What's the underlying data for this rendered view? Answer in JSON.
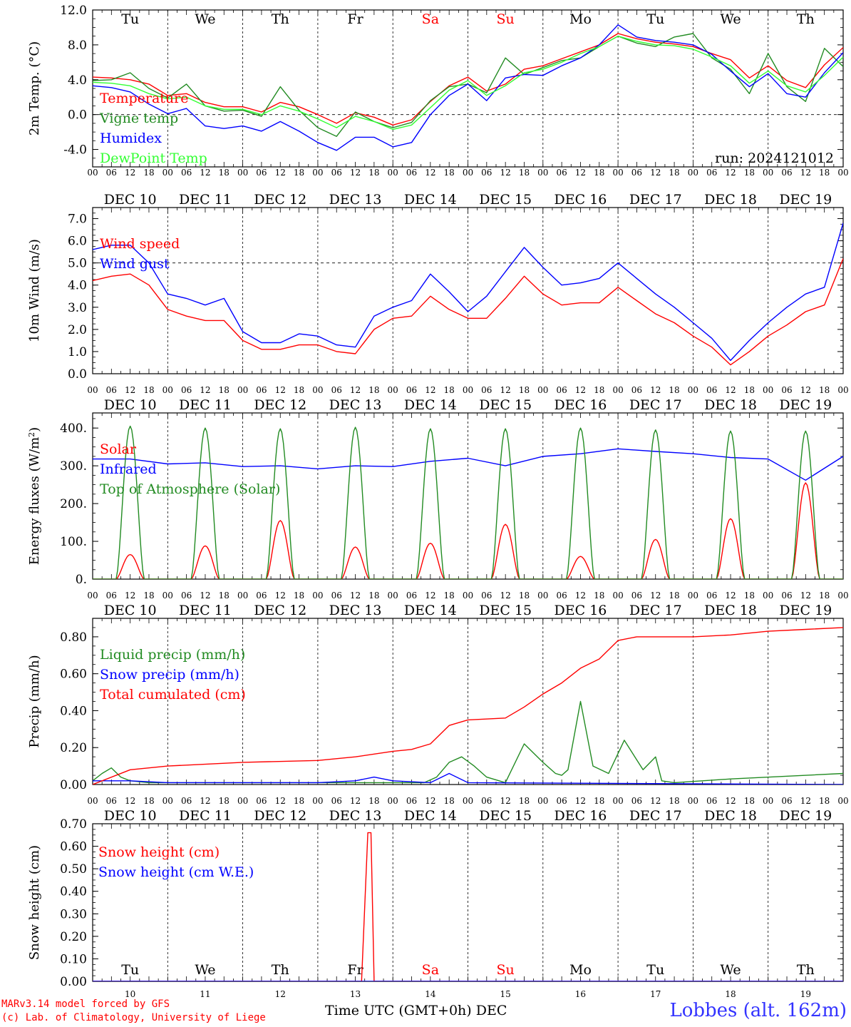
{
  "footer": {
    "model_line": "MARv3.14 model forced by GFS",
    "lab_line": "(c) Lab. of Climatology, University of Liege",
    "station": "Lobbes (alt. 162m)",
    "time_axis_title": "Time UTC (GMT+0h)",
    "month": "DEC"
  },
  "colors": {
    "red": "#ff0000",
    "green": "#228b22",
    "blue": "#0000ff",
    "lightgreen": "#33ff33",
    "weekend": "#ff0000",
    "weekday": "#000000"
  },
  "axis": {
    "hour_labels": [
      "00",
      "06",
      "12",
      "18"
    ],
    "date_labels": [
      "DEC 10",
      "DEC 11",
      "DEC 12",
      "DEC 13",
      "DEC 14",
      "DEC 15",
      "DEC 16",
      "DEC 17",
      "DEC 18",
      "DEC 19"
    ],
    "day_names": [
      "Tu",
      "We",
      "Th",
      "Fr",
      "Sa",
      "Su",
      "Mo",
      "Tu",
      "We",
      "Th"
    ],
    "weekend_flags": [
      false,
      false,
      false,
      false,
      true,
      true,
      false,
      false,
      false,
      false
    ],
    "day_numbers": [
      "10",
      "11",
      "12",
      "13",
      "14",
      "15",
      "16",
      "17",
      "18",
      "19"
    ],
    "total_hours": 240
  },
  "chart_data": [
    {
      "type": "line",
      "ylabel": "2m Temp. (°C)",
      "ylim": [
        -6,
        12
      ],
      "yticks": [
        -4,
        0,
        4,
        8,
        12
      ],
      "ytick_labels": [
        "-4.0",
        "0.0",
        "4.0",
        "8.0",
        "12.0"
      ],
      "ref_line": 0,
      "run_label": "run: 2024121012",
      "x_hours": [
        0,
        6,
        12,
        18,
        24,
        30,
        36,
        42,
        48,
        54,
        60,
        66,
        72,
        78,
        84,
        90,
        96,
        102,
        108,
        114,
        120,
        126,
        132,
        138,
        144,
        150,
        156,
        162,
        168,
        174,
        180,
        186,
        192,
        198,
        204,
        210,
        216,
        222,
        228,
        234,
        240
      ],
      "series": [
        {
          "name": "Temperature",
          "color": "red",
          "values": [
            4.3,
            4.2,
            4.0,
            3.5,
            2.2,
            2.4,
            1.4,
            0.9,
            0.9,
            0.3,
            1.4,
            0.9,
            0.0,
            -1.0,
            0.2,
            -0.3,
            -1.2,
            -0.6,
            1.5,
            3.3,
            4.3,
            2.7,
            3.5,
            5.2,
            5.6,
            6.4,
            7.2,
            8.0,
            9.3,
            8.7,
            8.3,
            8.1,
            7.8,
            7.0,
            6.3,
            4.2,
            5.6,
            3.9,
            3.1,
            5.7,
            7.7
          ]
        },
        {
          "name": "Vigne temp",
          "color": "green",
          "values": [
            3.9,
            4.0,
            4.8,
            3.0,
            1.9,
            3.5,
            1.0,
            0.4,
            0.5,
            -0.2,
            3.2,
            0.5,
            -1.5,
            -2.5,
            0.3,
            -0.8,
            -1.5,
            -0.9,
            1.6,
            3.2,
            3.5,
            2.5,
            6.5,
            4.6,
            5.4,
            6.2,
            6.5,
            7.8,
            9.0,
            8.2,
            7.8,
            8.9,
            9.3,
            6.5,
            5.2,
            2.4,
            7.0,
            3.2,
            1.5,
            7.6,
            5.5
          ]
        },
        {
          "name": "Humidex",
          "color": "blue",
          "values": [
            3.3,
            3.1,
            2.6,
            1.2,
            0.1,
            0.7,
            -1.3,
            -1.6,
            -1.3,
            -1.9,
            -0.8,
            -1.9,
            -3.2,
            -4.1,
            -2.6,
            -2.6,
            -3.7,
            -3.2,
            0.0,
            2.2,
            3.5,
            1.6,
            4.2,
            4.6,
            4.5,
            5.6,
            6.5,
            8.0,
            10.3,
            8.9,
            8.5,
            8.3,
            8.0,
            6.9,
            5.0,
            3.2,
            4.7,
            2.4,
            2.0,
            4.8,
            7.1
          ]
        },
        {
          "name": "DewPoint Temp",
          "color": "lightgreen",
          "values": [
            3.7,
            3.6,
            3.3,
            2.4,
            1.8,
            2.0,
            1.0,
            0.6,
            0.6,
            0.0,
            1.0,
            0.4,
            -0.5,
            -1.5,
            -0.2,
            -0.8,
            -1.7,
            -1.2,
            0.8,
            2.8,
            3.9,
            2.2,
            3.3,
            4.8,
            5.2,
            6.0,
            7.0,
            7.8,
            9.0,
            8.4,
            8.0,
            7.9,
            7.5,
            6.6,
            5.6,
            3.6,
            5.0,
            3.3,
            2.6,
            4.5,
            6.6
          ]
        }
      ]
    },
    {
      "type": "line",
      "ylabel": "10m Wind (m/s)",
      "ylim": [
        0,
        7.5
      ],
      "yticks": [
        0,
        1,
        2,
        3,
        4,
        5,
        6,
        7
      ],
      "ytick_labels": [
        "0.0",
        "1.0",
        "2.0",
        "3.0",
        "4.0",
        "5.0",
        "6.0",
        "7.0"
      ],
      "ref_line": 5,
      "x_hours": [
        0,
        6,
        12,
        18,
        24,
        30,
        36,
        42,
        48,
        54,
        60,
        66,
        72,
        78,
        84,
        90,
        96,
        102,
        108,
        114,
        120,
        126,
        132,
        138,
        144,
        150,
        156,
        162,
        168,
        174,
        180,
        186,
        192,
        198,
        204,
        210,
        216,
        222,
        228,
        234,
        240
      ],
      "series": [
        {
          "name": "Wind speed",
          "color": "red",
          "values": [
            4.2,
            4.4,
            4.5,
            4.0,
            2.9,
            2.6,
            2.4,
            2.4,
            1.5,
            1.1,
            1.1,
            1.3,
            1.3,
            1.0,
            0.9,
            2.0,
            2.5,
            2.6,
            3.5,
            2.9,
            2.5,
            2.5,
            3.4,
            4.4,
            3.6,
            3.1,
            3.2,
            3.2,
            3.9,
            3.3,
            2.7,
            2.3,
            1.7,
            1.2,
            0.4,
            1.0,
            1.7,
            2.2,
            2.8,
            3.1,
            5.2
          ]
        },
        {
          "name": "Wind gust",
          "color": "blue",
          "values": [
            5.6,
            5.8,
            5.8,
            5.0,
            3.6,
            3.4,
            3.1,
            3.4,
            1.9,
            1.4,
            1.4,
            1.8,
            1.7,
            1.3,
            1.2,
            2.6,
            3.0,
            3.3,
            4.5,
            3.7,
            2.8,
            3.5,
            4.6,
            5.7,
            4.8,
            4.0,
            4.1,
            4.3,
            5.0,
            4.3,
            3.6,
            3.0,
            2.3,
            1.6,
            0.6,
            1.5,
            2.3,
            3.0,
            3.6,
            3.9,
            6.8
          ]
        }
      ]
    },
    {
      "type": "line",
      "ylabel": "Energy fluxes (W/m²)",
      "ylim": [
        0,
        440
      ],
      "yticks": [
        0,
        100,
        200,
        300,
        400
      ],
      "ytick_labels": [
        "0.",
        "100.",
        "200.",
        "300.",
        "400."
      ],
      "solar_peaks": [
        65,
        88,
        155,
        85,
        95,
        145,
        60,
        105,
        160,
        255
      ],
      "toa_peaks": [
        405,
        400,
        398,
        402,
        398,
        398,
        400,
        395,
        392,
        392
      ],
      "series": [
        {
          "name": "Solar",
          "color": "red"
        },
        {
          "name": "Infrared",
          "color": "blue",
          "x_hours": [
            0,
            12,
            24,
            36,
            48,
            60,
            72,
            84,
            96,
            108,
            120,
            132,
            144,
            156,
            168,
            180,
            192,
            204,
            216,
            228,
            240
          ],
          "values": [
            318,
            318,
            305,
            308,
            298,
            300,
            292,
            300,
            298,
            312,
            320,
            300,
            325,
            332,
            345,
            338,
            332,
            322,
            318,
            262,
            325
          ]
        },
        {
          "name": "Top of Atmosphere (Solar)",
          "color": "green"
        }
      ]
    },
    {
      "type": "line",
      "ylabel": "Precip (mm/h)",
      "ylim": [
        0,
        0.9
      ],
      "yticks": [
        0,
        0.2,
        0.4,
        0.6,
        0.8
      ],
      "ytick_labels": [
        "0.00",
        "0.20",
        "0.40",
        "0.60",
        "0.80"
      ],
      "series": [
        {
          "name": "Liquid precip (mm/h)",
          "color": "green",
          "x_hours": [
            0,
            3,
            6,
            9,
            12,
            18,
            24,
            48,
            72,
            96,
            106,
            110,
            114,
            118,
            122,
            126,
            132,
            138,
            144,
            148,
            150,
            152,
            156,
            160,
            165,
            170,
            176,
            180,
            182,
            186,
            204,
            240
          ],
          "values": [
            0.02,
            0.06,
            0.09,
            0.04,
            0.02,
            0.01,
            0.01,
            0.01,
            0.01,
            0.01,
            0.01,
            0.04,
            0.12,
            0.15,
            0.1,
            0.04,
            0.01,
            0.22,
            0.12,
            0.06,
            0.05,
            0.08,
            0.45,
            0.1,
            0.06,
            0.24,
            0.08,
            0.15,
            0.02,
            0.01,
            0.03,
            0.06
          ]
        },
        {
          "name": "Snow precip (mm/h)",
          "color": "blue",
          "x_hours": [
            0,
            12,
            24,
            48,
            72,
            84,
            90,
            96,
            108,
            114,
            120,
            240
          ],
          "values": [
            0.02,
            0.02,
            0.01,
            0.01,
            0.01,
            0.02,
            0.04,
            0.02,
            0.01,
            0.06,
            0.01,
            0.0
          ]
        },
        {
          "name": "Total cumulated (cm)",
          "color": "red",
          "x_hours": [
            0,
            12,
            24,
            48,
            72,
            84,
            96,
            102,
            108,
            114,
            120,
            132,
            138,
            144,
            150,
            156,
            162,
            168,
            174,
            180,
            192,
            204,
            216,
            228,
            240
          ],
          "values": [
            0.0,
            0.08,
            0.1,
            0.12,
            0.13,
            0.15,
            0.18,
            0.19,
            0.22,
            0.32,
            0.35,
            0.36,
            0.42,
            0.49,
            0.55,
            0.63,
            0.68,
            0.78,
            0.8,
            0.8,
            0.8,
            0.81,
            0.83,
            0.84,
            0.85
          ]
        }
      ]
    },
    {
      "type": "line",
      "ylabel": "Snow height (cm)",
      "ylim": [
        0,
        0.7
      ],
      "yticks": [
        0,
        0.1,
        0.2,
        0.3,
        0.4,
        0.5,
        0.6,
        0.7
      ],
      "ytick_labels": [
        "0.00",
        "0.10",
        "0.20",
        "0.30",
        "0.40",
        "0.50",
        "0.60",
        "0.70"
      ],
      "series": [
        {
          "name": "Snow height (cm)",
          "color": "red",
          "x_hours": [
            0,
            86,
            88,
            89,
            90,
            240
          ],
          "values": [
            0,
            0,
            0.66,
            0.66,
            0,
            0
          ]
        },
        {
          "name": "Snow height (cm W.E.)",
          "color": "blue",
          "x_hours": [
            0,
            240
          ],
          "values": [
            0,
            0
          ]
        }
      ]
    }
  ]
}
